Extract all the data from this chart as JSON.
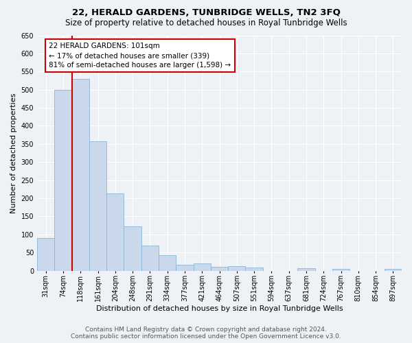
{
  "title": "22, HERALD GARDENS, TUNBRIDGE WELLS, TN2 3FQ",
  "subtitle": "Size of property relative to detached houses in Royal Tunbridge Wells",
  "xlabel": "Distribution of detached houses by size in Royal Tunbridge Wells",
  "ylabel": "Number of detached properties",
  "footer_line1": "Contains HM Land Registry data © Crown copyright and database right 2024.",
  "footer_line2": "Contains public sector information licensed under the Open Government Licence v3.0.",
  "bar_labels": [
    "31sqm",
    "74sqm",
    "118sqm",
    "161sqm",
    "204sqm",
    "248sqm",
    "291sqm",
    "334sqm",
    "377sqm",
    "421sqm",
    "464sqm",
    "507sqm",
    "551sqm",
    "594sqm",
    "637sqm",
    "681sqm",
    "724sqm",
    "767sqm",
    "810sqm",
    "854sqm",
    "897sqm"
  ],
  "bar_values": [
    90,
    500,
    530,
    358,
    213,
    122,
    70,
    43,
    16,
    20,
    11,
    12,
    9,
    0,
    0,
    6,
    0,
    5,
    0,
    0,
    5
  ],
  "bar_color": "#c9d9eb",
  "bar_edge_color": "#8ab4d4",
  "annotation_text": "22 HERALD GARDENS: 101sqm\n← 17% of detached houses are smaller (339)\n81% of semi-detached houses are larger (1,598) →",
  "annotation_box_color": "#ffffff",
  "annotation_box_edge": "#cc0000",
  "vline_color": "#cc0000",
  "ylim": [
    0,
    650
  ],
  "yticks": [
    0,
    50,
    100,
    150,
    200,
    250,
    300,
    350,
    400,
    450,
    500,
    550,
    600,
    650
  ],
  "background_color": "#eef2f7",
  "grid_color": "#ffffff",
  "title_fontsize": 9.5,
  "subtitle_fontsize": 8.5,
  "xlabel_fontsize": 8,
  "ylabel_fontsize": 8,
  "tick_fontsize": 7,
  "annotation_fontsize": 7.5,
  "footer_fontsize": 6.5
}
